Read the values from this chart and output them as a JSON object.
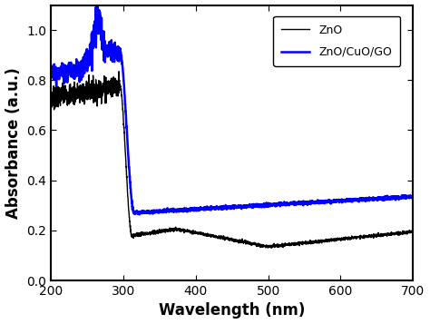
{
  "xlabel": "Wavelength (nm)",
  "ylabel": "Absorbance (a.u.)",
  "xlim": [
    200,
    700
  ],
  "ylim": [
    0.0,
    1.1
  ],
  "yticks": [
    0.0,
    0.2,
    0.4,
    0.6,
    0.8,
    1.0
  ],
  "xticks": [
    200,
    300,
    400,
    500,
    600,
    700
  ],
  "zno_color": "#000000",
  "composite_color": "#0000ff",
  "legend_labels": [
    "ZnO",
    "ZnO/CuO/GO"
  ],
  "background_color": "#ffffff",
  "linewidth_zno": 1.0,
  "linewidth_composite": 1.8
}
